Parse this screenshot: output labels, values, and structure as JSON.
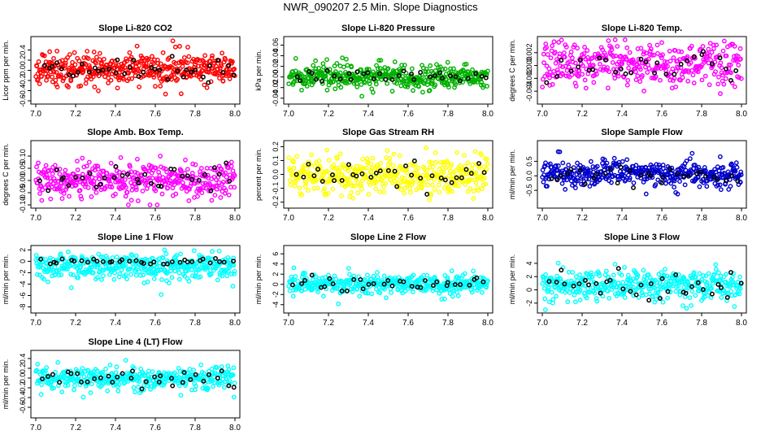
{
  "page": {
    "title": "NWR_090207  2.5 Min. Slope Diagnostics"
  },
  "chart_data": [
    {
      "type": "scatter",
      "title": "Slope Li-820 CO2",
      "ylabel": "Licor ppm per min.",
      "xlim": [
        7.0,
        8.0
      ],
      "ylim": [
        -0.6,
        0.6
      ],
      "xticks": [
        "7.0",
        "7.2",
        "7.4",
        "7.6",
        "7.8",
        "8.0"
      ],
      "yticks": [
        -0.6,
        -0.4,
        -0.2,
        0.0,
        0.2,
        0.4
      ],
      "ytick_labels": [
        "-0.6",
        "-0.4",
        "-0.2",
        "0.0",
        "0.2",
        "0.4"
      ],
      "color": "#ff0000",
      "center": 0.02,
      "spread": 0.15,
      "outlier_spread": 0.5,
      "n": 420,
      "n_black": 38,
      "seed": 11
    },
    {
      "type": "scatter",
      "title": "Slope Li-820 Pressure",
      "ylabel": "kPa per min.",
      "xlim": [
        7.0,
        8.0
      ],
      "ylim": [
        -0.045,
        0.07
      ],
      "xticks": [
        "7.0",
        "7.2",
        "7.4",
        "7.6",
        "7.8",
        "8.0"
      ],
      "yticks": [
        -0.04,
        -0.02,
        0.0,
        0.02,
        0.04,
        0.06
      ],
      "ytick_labels": [
        "-0.04",
        "-0.02",
        "0.00",
        "0.02",
        "0.04",
        "0.06"
      ],
      "color": "#00b000",
      "center": 0.0,
      "spread": 0.01,
      "outlier_spread": 0.04,
      "n": 420,
      "n_black": 34,
      "seed": 23
    },
    {
      "type": "scatter",
      "title": "Slope Li-820 Temp.",
      "ylabel": "degrees C per min.",
      "xlim": [
        7.0,
        8.0
      ],
      "ylim": [
        -0.0055,
        0.004
      ],
      "xticks": [
        "7.0",
        "7.2",
        "7.4",
        "7.6",
        "7.8",
        "8.0"
      ],
      "yticks": [
        -0.004,
        -0.002,
        0.0,
        0.002
      ],
      "ytick_labels": [
        "-0.004",
        "-0.002",
        "0.000",
        "0.002"
      ],
      "color": "#ff00ff",
      "center": 0.0003,
      "spread": 0.0016,
      "outlier_spread": 0.004,
      "n": 380,
      "n_black": 30,
      "seed": 37
    },
    {
      "type": "scatter",
      "title": "Slope Amb. Box Temp.",
      "ylabel": "degrees C per min.",
      "xlim": [
        7.0,
        8.0
      ],
      "ylim": [
        -0.1,
        0.15
      ],
      "xticks": [
        "7.0",
        "7.2",
        "7.4",
        "7.6",
        "7.8",
        "8.0"
      ],
      "yticks": [
        -0.1,
        -0.05,
        0.0,
        0.05,
        0.1
      ],
      "ytick_labels": [
        "-0.10",
        "-0.05",
        "0.00",
        "0.05",
        "0.10"
      ],
      "color": "#ff00ff",
      "center": 0.0,
      "spread": 0.035,
      "outlier_spread": 0.1,
      "n": 400,
      "n_black": 34,
      "seed": 41
    },
    {
      "type": "scatter",
      "title": "Slope Gas Stream RH",
      "ylabel": "percent per min.",
      "xlim": [
        7.0,
        8.0
      ],
      "ylim": [
        -0.22,
        0.22
      ],
      "xticks": [
        "7.0",
        "7.2",
        "7.4",
        "7.6",
        "7.8",
        "8.0"
      ],
      "yticks": [
        -0.2,
        -0.1,
        0.0,
        0.1,
        0.2
      ],
      "ytick_labels": [
        "-0.2",
        "-0.1",
        "0.0",
        "0.1",
        "0.2"
      ],
      "color": "#ffff00",
      "center": 0.0,
      "spread": 0.07,
      "outlier_spread": 0.2,
      "n": 420,
      "n_black": 34,
      "seed": 53
    },
    {
      "type": "scatter",
      "title": "Slope Sample Flow",
      "ylabel": "ml/min per min.",
      "xlim": [
        7.0,
        8.0
      ],
      "ylim": [
        -1.0,
        1.1
      ],
      "xticks": [
        "7.0",
        "7.2",
        "7.4",
        "7.6",
        "7.8",
        "8.0"
      ],
      "yticks": [
        -0.5,
        0.0,
        0.5
      ],
      "ytick_labels": [
        "-0.5",
        "0.0",
        "0.5"
      ],
      "color": "#0000cc",
      "center": 0.05,
      "spread": 0.2,
      "outlier_spread": 0.8,
      "n": 420,
      "n_black": 32,
      "seed": 67
    },
    {
      "type": "scatter",
      "title": "Slope Line 1 Flow",
      "ylabel": "ml/min per min.",
      "xlim": [
        7.0,
        8.0
      ],
      "ylim": [
        -8.5,
        2.2
      ],
      "xticks": [
        "7.0",
        "7.2",
        "7.4",
        "7.6",
        "7.8",
        "8.0"
      ],
      "yticks": [
        -8,
        -6,
        -4,
        -2,
        0,
        2
      ],
      "ytick_labels": [
        "-8",
        "-6",
        "-4",
        "-2",
        "0",
        "2"
      ],
      "color": "#00ffff",
      "center": -0.9,
      "spread": 1.1,
      "outlier_spread": 5,
      "n": 420,
      "n_black": 36,
      "seed": 79,
      "black_center": 0.0,
      "black_spread": 0.25
    },
    {
      "type": "scatter",
      "title": "Slope Line 2 Flow",
      "ylabel": "ml/min per min.",
      "xlim": [
        7.0,
        8.0
      ],
      "ylim": [
        -5,
        7
      ],
      "xticks": [
        "7.0",
        "7.2",
        "7.4",
        "7.6",
        "7.8",
        "8.0"
      ],
      "yticks": [
        -4,
        -2,
        0,
        2,
        4,
        6
      ],
      "ytick_labels": [
        "-4",
        "-2",
        "0",
        "2",
        "4",
        "6"
      ],
      "color": "#00ffff",
      "center": 0.0,
      "spread": 0.9,
      "outlier_spread": 4,
      "n": 420,
      "n_black": 34,
      "seed": 83
    },
    {
      "type": "scatter",
      "title": "Slope Line 3 Flow",
      "ylabel": "ml/min per min.",
      "xlim": [
        7.0,
        8.0
      ],
      "ylim": [
        -3,
        6.2
      ],
      "xticks": [
        "7.0",
        "7.2",
        "7.4",
        "7.6",
        "7.8",
        "8.0"
      ],
      "yticks": [
        -2,
        0,
        2,
        4
      ],
      "ytick_labels": [
        "-2",
        "0",
        "2",
        "4"
      ],
      "color": "#00ffff",
      "center": 0.7,
      "spread": 1.2,
      "outlier_spread": 4,
      "n": 420,
      "n_black": 34,
      "seed": 97
    },
    {
      "type": "scatter",
      "title": "Slope Line 4 (LT) Flow",
      "ylabel": "ml/min per min.",
      "xlim": [
        7.0,
        8.0
      ],
      "ylim": [
        -0.75,
        0.5
      ],
      "xticks": [
        "7.0",
        "7.2",
        "7.4",
        "7.6",
        "7.8",
        "8.0"
      ],
      "yticks": [
        -0.6,
        -0.4,
        -0.2,
        0.0,
        0.2,
        0.4
      ],
      "ytick_labels": [
        "-0.6",
        "-0.4",
        "-0.2",
        "0.0",
        "0.2",
        "0.4"
      ],
      "color": "#00ffff",
      "center": 0.0,
      "spread": 0.11,
      "outlier_spread": 0.4,
      "n": 380,
      "n_black": 34,
      "seed": 101
    }
  ]
}
